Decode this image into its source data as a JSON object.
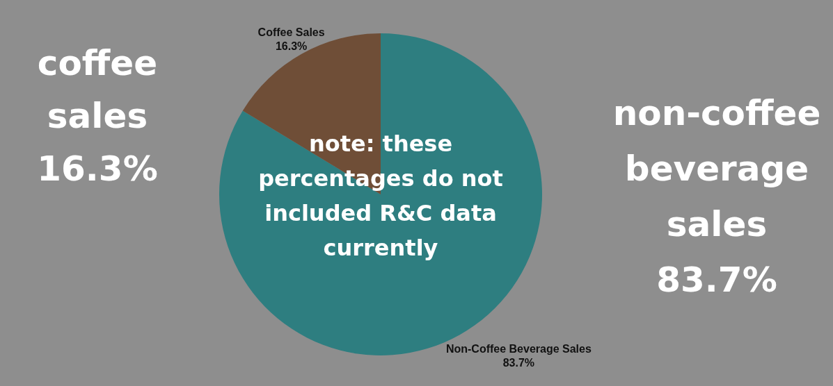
{
  "chart_data": {
    "type": "pie",
    "categories": [
      "Non-Coffee Beverage Sales",
      "Coffee Sales"
    ],
    "values": [
      83.7,
      16.3
    ],
    "colors": [
      "#2e7e80",
      "#6f4e37"
    ],
    "value_labels": [
      "83.7%",
      "16.3%"
    ],
    "annotations": [
      "coffee\nsales\n16.3%",
      "non-coffee\nbeverage\nsales\n83.7%",
      "note: these\npercentages do not\nincluded R&C data\ncurrently"
    ]
  }
}
